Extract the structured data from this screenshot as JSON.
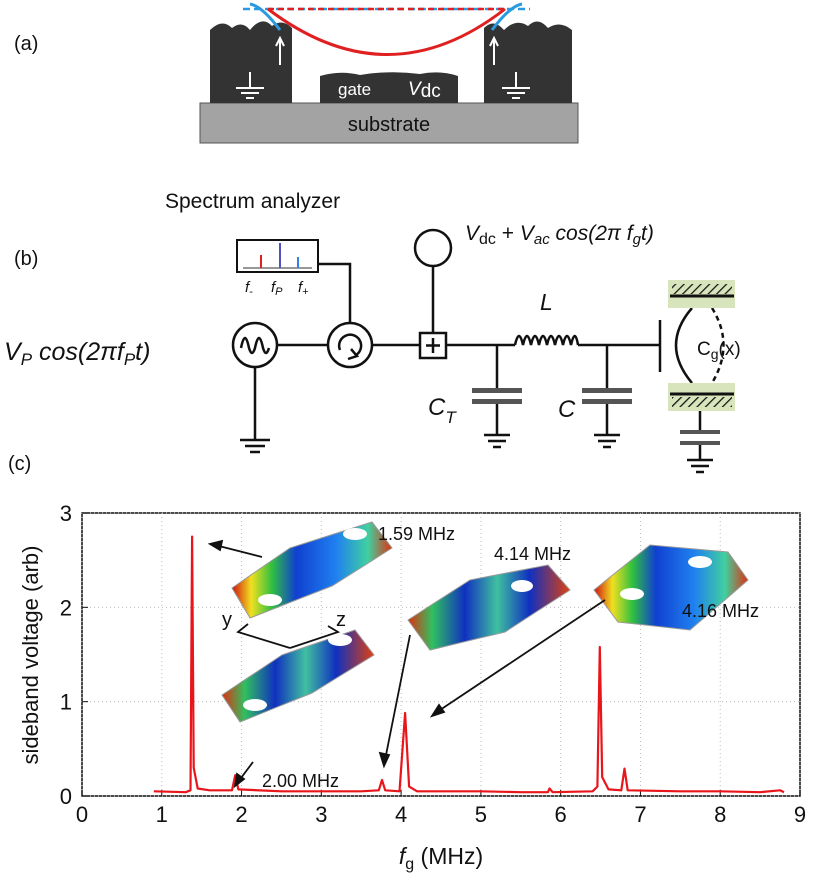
{
  "panel_a": {
    "label": "(a)",
    "gate": "gate",
    "vdc": [
      "V",
      "dc"
    ],
    "substrate": "substrate"
  },
  "panel_b": {
    "label": "(b)",
    "analyzer": "Spectrum analyzer",
    "peaks": [
      [
        "f",
        "-"
      ],
      [
        "f",
        "P"
      ],
      [
        "f",
        "+"
      ]
    ],
    "bias": [
      "V",
      "dc",
      " + ",
      "V",
      "ac",
      " cos(2π f",
      "g",
      "t)"
    ],
    "source": [
      "V",
      "P",
      " cos(2πf",
      "P",
      "t)"
    ],
    "inductor": "L",
    "ct": [
      "C",
      "T"
    ],
    "c": "C",
    "cg": [
      "C",
      "g",
      "(x)"
    ]
  },
  "chart_data": {
    "type": "line",
    "label": "(c)",
    "x_label": [
      "f",
      "g",
      " (MHz)"
    ],
    "y_label": "sideband voltage (arb)",
    "x": [
      0.9,
      1.3,
      1.36,
      1.38,
      1.4,
      1.45,
      1.6,
      1.88,
      1.92,
      1.96,
      2.5,
      3.0,
      3.5,
      3.72,
      3.76,
      3.8,
      3.98,
      4.05,
      4.1,
      4.2,
      5.0,
      5.5,
      5.84,
      5.86,
      5.9,
      6.4,
      6.46,
      6.49,
      6.52,
      6.6,
      6.76,
      6.8,
      6.84,
      7.5,
      8.0,
      8.5,
      8.75,
      8.8
    ],
    "series": [
      {
        "color": "#e8151b",
        "values": [
          0.05,
          0.04,
          0.06,
          2.75,
          0.3,
          0.08,
          0.06,
          0.06,
          0.22,
          0.07,
          0.05,
          0.05,
          0.05,
          0.06,
          0.17,
          0.06,
          0.05,
          0.88,
          0.1,
          0.05,
          0.05,
          0.04,
          0.04,
          0.08,
          0.04,
          0.05,
          0.1,
          1.58,
          0.2,
          0.07,
          0.06,
          0.29,
          0.06,
          0.05,
          0.05,
          0.04,
          0.06,
          0.04
        ]
      }
    ],
    "xlim": [
      0,
      9
    ],
    "ylim": [
      0,
      3
    ],
    "xticks": [
      0,
      1,
      2,
      3,
      4,
      5,
      6,
      7,
      8,
      9
    ],
    "yticks": [
      0,
      1,
      2,
      3
    ],
    "grid": true,
    "annotations": [
      "1.59 MHz",
      "4.14 MHz",
      "4.16 MHz",
      "2.00 MHz",
      "y",
      "z"
    ]
  }
}
